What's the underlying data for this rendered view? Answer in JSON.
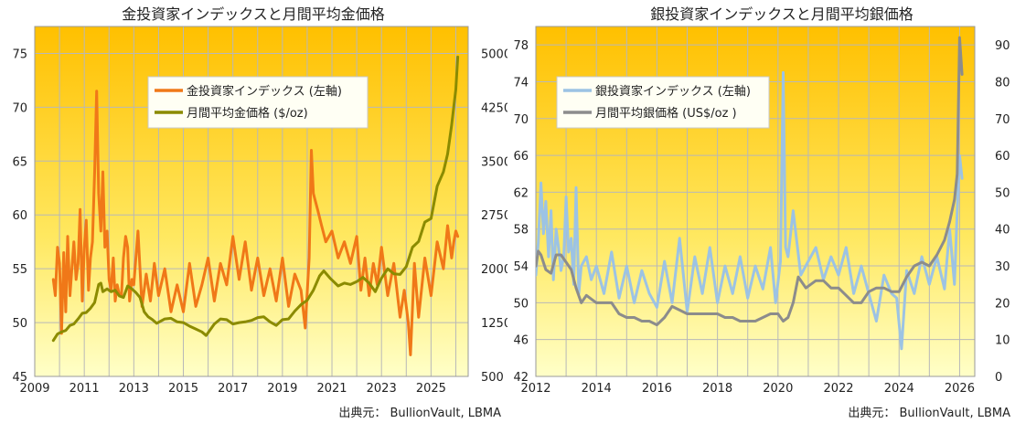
{
  "chart_data": [
    {
      "type": "line",
      "title": "金投資家インデックスと月間平均金価格",
      "source": "出典元： BullionVault, LBMA",
      "grid": true,
      "legend_position": "top-center",
      "x_range": [
        2009,
        2026.5
      ],
      "x_ticks": [
        2009,
        2011,
        2013,
        2015,
        2017,
        2019,
        2021,
        2023,
        2025
      ],
      "y_left": {
        "range": [
          45,
          77.5
        ],
        "ticks": [
          45,
          50,
          55,
          60,
          65,
          70,
          75
        ]
      },
      "y_right": {
        "range": [
          500,
          5375
        ],
        "ticks": [
          500,
          1250,
          2000,
          2750,
          3500,
          4250,
          5000
        ]
      },
      "series": [
        {
          "name": "金投資家インデックス (左軸)",
          "axis": "left",
          "color": "#f07818",
          "x": [
            2009.75,
            2009.83,
            2009.92,
            2010.0,
            2010.08,
            2010.17,
            2010.25,
            2010.33,
            2010.42,
            2010.5,
            2010.58,
            2010.67,
            2010.75,
            2010.83,
            2010.92,
            2011.0,
            2011.08,
            2011.17,
            2011.25,
            2011.33,
            2011.42,
            2011.5,
            2011.58,
            2011.67,
            2011.75,
            2011.83,
            2011.92,
            2012.0,
            2012.08,
            2012.17,
            2012.25,
            2012.33,
            2012.42,
            2012.5,
            2012.58,
            2012.67,
            2012.75,
            2012.83,
            2012.92,
            2013.0,
            2013.17,
            2013.33,
            2013.5,
            2013.67,
            2013.83,
            2014.0,
            2014.25,
            2014.5,
            2014.75,
            2015.0,
            2015.25,
            2015.5,
            2015.75,
            2016.0,
            2016.25,
            2016.5,
            2016.75,
            2017.0,
            2017.25,
            2017.5,
            2017.75,
            2018.0,
            2018.25,
            2018.5,
            2018.75,
            2019.0,
            2019.25,
            2019.5,
            2019.75,
            2019.92,
            2020.08,
            2020.17,
            2020.25,
            2020.42,
            2020.58,
            2020.75,
            2021.0,
            2021.25,
            2021.5,
            2021.75,
            2022.0,
            2022.17,
            2022.33,
            2022.5,
            2022.67,
            2022.83,
            2023.0,
            2023.25,
            2023.5,
            2023.75,
            2023.92,
            2024.08,
            2024.17,
            2024.33,
            2024.5,
            2024.75,
            2025.0,
            2025.25,
            2025.5,
            2025.67,
            2025.83,
            2025.92,
            2026.0,
            2026.08
          ],
          "values": [
            54.0,
            52.5,
            57.0,
            55.5,
            49.0,
            56.5,
            51.0,
            58.0,
            52.5,
            55.0,
            57.5,
            54.0,
            55.5,
            60.5,
            52.0,
            57.0,
            59.5,
            53.0,
            56.0,
            57.5,
            64.0,
            71.5,
            62.0,
            58.5,
            64.0,
            57.0,
            58.5,
            54.0,
            53.0,
            56.0,
            52.0,
            53.5,
            52.5,
            52.5,
            56.0,
            58.0,
            57.0,
            52.0,
            54.0,
            53.5,
            58.5,
            51.5,
            54.5,
            52.0,
            55.5,
            52.5,
            55.0,
            51.0,
            53.5,
            51.0,
            55.5,
            51.5,
            53.5,
            56.0,
            52.0,
            55.5,
            53.5,
            58.0,
            54.0,
            57.5,
            53.0,
            56.0,
            52.5,
            55.0,
            52.0,
            56.0,
            51.5,
            54.5,
            53.0,
            49.5,
            56.0,
            66.0,
            62.0,
            60.5,
            59.0,
            57.5,
            58.5,
            56.0,
            57.5,
            55.5,
            58.0,
            53.0,
            56.0,
            52.5,
            55.5,
            53.5,
            57.0,
            52.5,
            55.5,
            50.5,
            53.0,
            50.0,
            47.0,
            55.5,
            50.5,
            56.0,
            52.5,
            57.5,
            55.0,
            59.0,
            56.0,
            57.5,
            58.5,
            58.0
          ]
        },
        {
          "name": "月間平均金価格 ($/oz)",
          "axis": "right",
          "color": "#8b8b00",
          "x": [
            2009.75,
            2009.92,
            2010.08,
            2010.25,
            2010.42,
            2010.58,
            2010.75,
            2010.92,
            2011.08,
            2011.25,
            2011.42,
            2011.58,
            2011.67,
            2011.75,
            2011.92,
            2012.08,
            2012.25,
            2012.42,
            2012.58,
            2012.75,
            2012.92,
            2013.08,
            2013.25,
            2013.42,
            2013.58,
            2013.75,
            2013.92,
            2014.25,
            2014.5,
            2014.75,
            2015.0,
            2015.25,
            2015.5,
            2015.75,
            2015.92,
            2016.25,
            2016.5,
            2016.75,
            2017.0,
            2017.25,
            2017.5,
            2017.75,
            2018.0,
            2018.25,
            2018.5,
            2018.75,
            2019.0,
            2019.25,
            2019.5,
            2019.75,
            2020.0,
            2020.25,
            2020.5,
            2020.67,
            2020.92,
            2021.25,
            2021.5,
            2021.75,
            2022.0,
            2022.25,
            2022.5,
            2022.75,
            2023.0,
            2023.25,
            2023.5,
            2023.75,
            2024.0,
            2024.25,
            2024.5,
            2024.75,
            2025.0,
            2025.25,
            2025.5,
            2025.67,
            2025.83,
            2026.0,
            2026.08
          ],
          "values": [
            1000,
            1090,
            1120,
            1140,
            1210,
            1230,
            1300,
            1380,
            1390,
            1450,
            1530,
            1780,
            1800,
            1680,
            1720,
            1680,
            1700,
            1620,
            1600,
            1760,
            1720,
            1670,
            1600,
            1400,
            1330,
            1290,
            1240,
            1300,
            1310,
            1260,
            1250,
            1200,
            1160,
            1120,
            1070,
            1230,
            1300,
            1290,
            1230,
            1250,
            1260,
            1280,
            1320,
            1330,
            1260,
            1210,
            1290,
            1300,
            1410,
            1500,
            1560,
            1700,
            1900,
            1970,
            1870,
            1760,
            1800,
            1780,
            1820,
            1880,
            1800,
            1680,
            1870,
            2000,
            1930,
            1920,
            2030,
            2300,
            2380,
            2650,
            2700,
            3150,
            3350,
            3600,
            4000,
            4500,
            4950
          ]
        }
      ]
    },
    {
      "type": "line",
      "title": "銀投資家インデックスと月間平均銀価格",
      "source": "出典元： BullionVault, LBMA",
      "grid": true,
      "legend_position": "top-left",
      "x_range": [
        2012,
        2026.5
      ],
      "x_ticks": [
        2012,
        2014,
        2016,
        2018,
        2020,
        2022,
        2024,
        2026
      ],
      "y_left": {
        "range": [
          42,
          80
        ],
        "ticks": [
          42,
          46,
          50,
          54,
          58,
          62,
          66,
          70,
          74,
          78
        ]
      },
      "y_right": {
        "range": [
          0,
          95
        ],
        "ticks": [
          0,
          10,
          20,
          30,
          40,
          50,
          60,
          70,
          80,
          90
        ]
      },
      "series": [
        {
          "name": "銀投資家インデックス (左軸)",
          "axis": "left",
          "color": "#9cc3e4",
          "x": [
            2012.0,
            2012.08,
            2012.17,
            2012.25,
            2012.33,
            2012.42,
            2012.5,
            2012.58,
            2012.67,
            2012.75,
            2012.83,
            2012.92,
            2013.0,
            2013.08,
            2013.17,
            2013.25,
            2013.33,
            2013.42,
            2013.5,
            2013.67,
            2013.83,
            2014.0,
            2014.25,
            2014.5,
            2014.75,
            2015.0,
            2015.25,
            2015.5,
            2015.75,
            2016.0,
            2016.25,
            2016.5,
            2016.75,
            2017.0,
            2017.25,
            2017.5,
            2017.75,
            2018.0,
            2018.25,
            2018.5,
            2018.75,
            2019.0,
            2019.25,
            2019.5,
            2019.75,
            2019.92,
            2020.08,
            2020.17,
            2020.25,
            2020.33,
            2020.5,
            2020.75,
            2021.0,
            2021.25,
            2021.5,
            2021.75,
            2022.0,
            2022.25,
            2022.5,
            2022.75,
            2023.0,
            2023.25,
            2023.5,
            2023.75,
            2023.92,
            2024.08,
            2024.25,
            2024.5,
            2024.75,
            2025.0,
            2025.25,
            2025.5,
            2025.67,
            2025.83,
            2025.92,
            2026.0,
            2026.08
          ],
          "values": [
            53.0,
            56.5,
            63.0,
            57.5,
            61.0,
            55.0,
            60.0,
            52.5,
            58.0,
            56.0,
            53.5,
            55.0,
            61.5,
            55.5,
            57.0,
            52.0,
            62.5,
            51.0,
            54.0,
            55.0,
            52.5,
            54.0,
            51.0,
            55.5,
            50.5,
            54.0,
            50.0,
            53.5,
            51.0,
            49.5,
            54.5,
            50.0,
            57.0,
            49.0,
            55.0,
            51.0,
            56.0,
            50.0,
            54.0,
            51.0,
            55.0,
            50.5,
            54.0,
            51.5,
            56.0,
            50.0,
            54.5,
            75.0,
            56.0,
            55.0,
            60.0,
            53.0,
            54.5,
            56.0,
            52.5,
            55.0,
            53.0,
            56.0,
            51.0,
            54.0,
            51.0,
            48.0,
            53.0,
            51.0,
            50.5,
            45.0,
            53.5,
            51.0,
            55.0,
            52.0,
            55.0,
            51.5,
            58.0,
            52.0,
            60.0,
            66.0,
            63.5
          ]
        },
        {
          "name": "月間平均銀価格 (US$/oz )",
          "axis": "right",
          "color": "#8c8c8c",
          "x": [
            2012.0,
            2012.08,
            2012.17,
            2012.33,
            2012.5,
            2012.67,
            2012.83,
            2013.0,
            2013.17,
            2013.33,
            2013.5,
            2013.67,
            2013.83,
            2014.0,
            2014.25,
            2014.5,
            2014.75,
            2015.0,
            2015.25,
            2015.5,
            2015.75,
            2016.0,
            2016.25,
            2016.5,
            2016.75,
            2017.0,
            2017.25,
            2017.5,
            2017.75,
            2018.0,
            2018.25,
            2018.5,
            2018.75,
            2019.0,
            2019.25,
            2019.5,
            2019.75,
            2020.0,
            2020.17,
            2020.33,
            2020.5,
            2020.67,
            2020.92,
            2021.25,
            2021.5,
            2021.75,
            2022.0,
            2022.25,
            2022.5,
            2022.75,
            2023.0,
            2023.25,
            2023.5,
            2023.75,
            2024.0,
            2024.25,
            2024.5,
            2024.75,
            2025.0,
            2025.25,
            2025.5,
            2025.67,
            2025.83,
            2025.92,
            2026.0,
            2026.08
          ],
          "values": [
            30,
            34,
            33,
            29,
            28,
            33,
            33,
            31,
            29,
            24,
            20,
            22,
            21,
            20,
            20,
            20,
            17,
            16,
            16,
            15,
            15,
            14,
            16,
            19,
            18,
            17,
            17,
            17,
            17,
            17,
            16,
            16,
            15,
            15,
            15,
            16,
            17,
            17,
            15,
            16,
            20,
            27,
            24,
            26,
            26,
            24,
            24,
            22,
            20,
            20,
            23,
            24,
            24,
            23,
            23,
            27,
            30,
            31,
            30,
            33,
            37,
            42,
            48,
            55,
            92,
            82
          ]
        }
      ]
    }
  ]
}
